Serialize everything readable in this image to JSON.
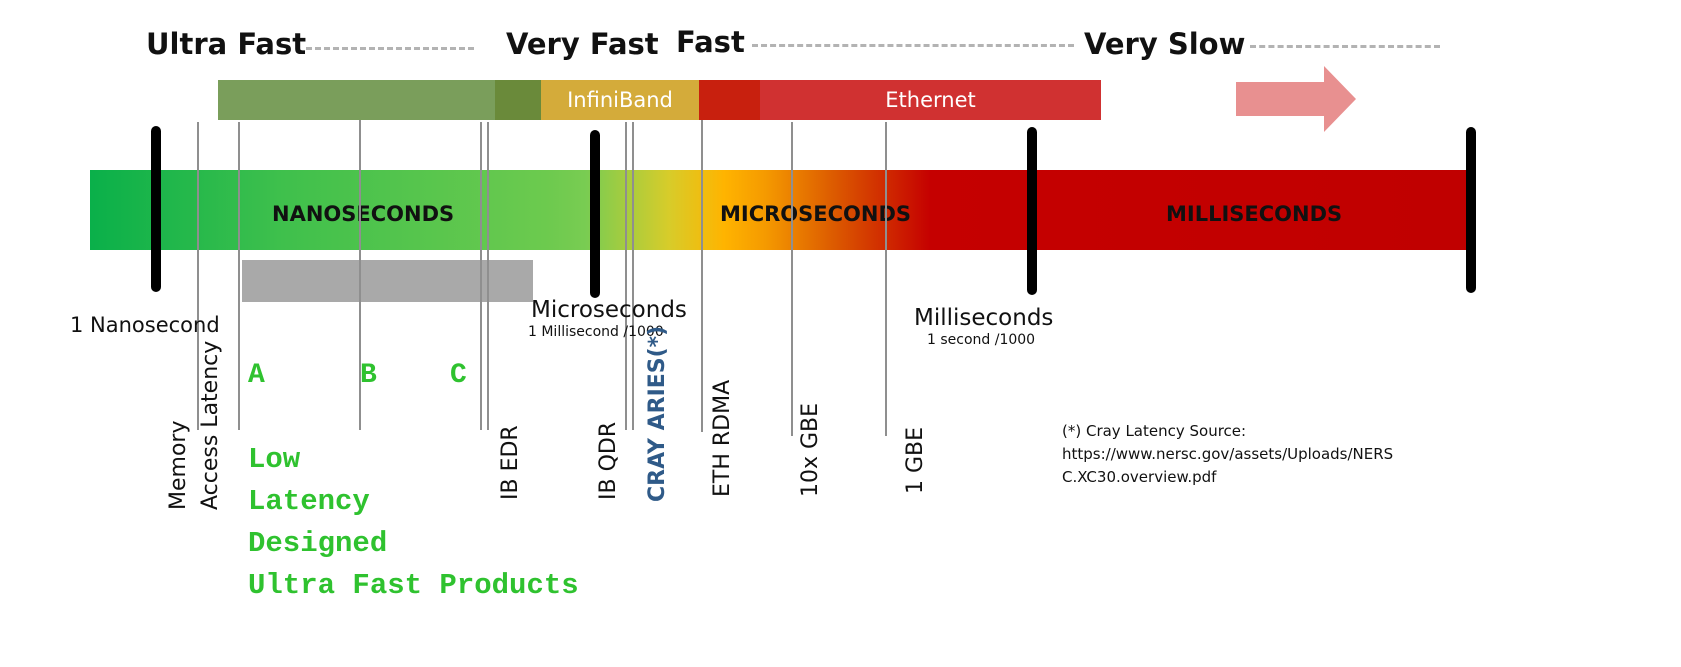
{
  "speed_scale": {
    "ultra_fast": "Ultra Fast",
    "very_fast": "Very Fast",
    "fast": "Fast",
    "very_slow": "Very Slow"
  },
  "interconnects": {
    "infiniband": "InfiniBand",
    "ethernet": "Ethernet"
  },
  "zones": {
    "nanoseconds": "NANOSECONDS",
    "microseconds": "MICROSECONDS",
    "milliseconds": "MILLISECONDS"
  },
  "time_marks": {
    "nanosecond": "1 Nanosecond",
    "microseconds": "Microseconds",
    "microseconds_sub": "1 Millisecond /1000",
    "milliseconds": "Milliseconds",
    "milliseconds_sub": "1 second /1000"
  },
  "products": {
    "a": "A",
    "b": "B",
    "c": "C"
  },
  "latency_labels": {
    "memory": "Memory",
    "access_latency": "Access Latency",
    "ib_edr": "IB EDR",
    "ib_qdr": "IB QDR",
    "cray_aries": "CRAY ARIES(*)",
    "eth_rdma": "ETH RDMA",
    "ten_gbe": "10x GBE",
    "one_gbe": "1 GBE"
  },
  "caption": {
    "line1": "Low",
    "line2": "Latency",
    "line3": "Designed",
    "line4": "Ultra Fast Products"
  },
  "source_note": {
    "line1": "(*) Cray Latency Source:",
    "line2": "https://www.nersc.gov/assets/Uploads/NERS",
    "line3": "C.XC30.overview.pdf"
  },
  "colors": {
    "ultra_band": "#7a9e5b",
    "infiniband": "#d4ab3a",
    "ethernet": "#d03131",
    "fast_red": "#c8200e",
    "arrow": "#e89090",
    "cray_blue": "#2f5a88",
    "caption_green": "#2fc22f"
  }
}
